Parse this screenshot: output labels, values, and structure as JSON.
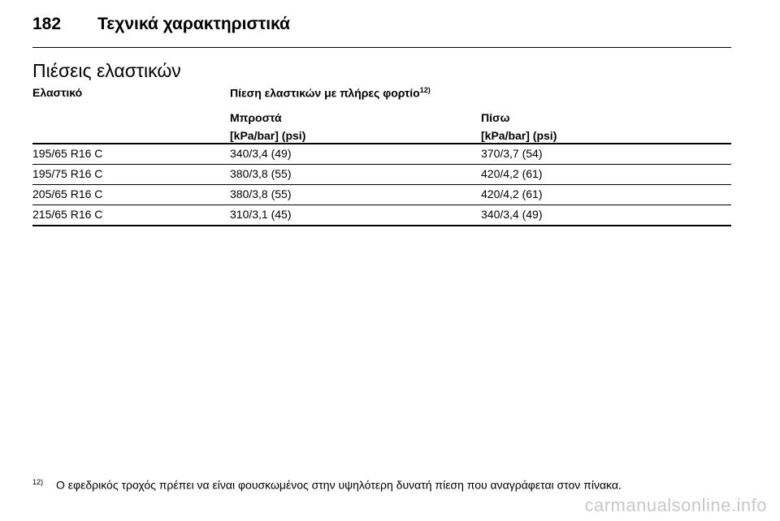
{
  "header": {
    "page_number": "182",
    "chapter_title": "Τεχνικά χαρακτηριστικά"
  },
  "section": {
    "title": "Πιέσεις ελαστικών"
  },
  "table": {
    "col_tyre_label": "Ελαστικό",
    "col_pressure_label": "Πίεση ελαστικών με πλήρες φορτίο",
    "col_pressure_footnote_ref": "12)",
    "front_label": "Μπροστά",
    "front_unit": "[kPa/bar] (psi)",
    "rear_label": "Πίσω",
    "rear_unit": "[kPa/bar] (psi)",
    "rows": [
      {
        "tyre": "195/65 R16 C",
        "front": "340/3,4 (49)",
        "rear": "370/3,7 (54)"
      },
      {
        "tyre": "195/75 R16 C",
        "front": "380/3,8 (55)",
        "rear": "420/4,2 (61)"
      },
      {
        "tyre": "205/65 R16 C",
        "front": "380/3,8 (55)",
        "rear": "420/4,2 (61)"
      },
      {
        "tyre": "215/65 R16 C",
        "front": "310/3,1 (45)",
        "rear": "340/3,4 (49)"
      }
    ]
  },
  "footnote": {
    "marker": "12)",
    "text": "Ο εφεδρικός τροχός πρέπει να είναι φουσκωμένος στην υψηλότερη δυνατή πίεση που αναγράφεται στον πίνακα."
  },
  "watermark": {
    "text": "carmanualsonline.info"
  }
}
